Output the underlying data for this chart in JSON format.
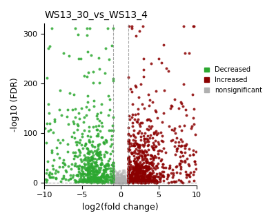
{
  "title": "WS13_30_vs_WS13_4",
  "xlabel": "log2(fold change)",
  "ylabel": "-log10 (FDR)",
  "xlim": [
    -10,
    10
  ],
  "ylim": [
    -5,
    320
  ],
  "yticks": [
    0,
    100,
    200,
    300
  ],
  "xticks": [
    -10,
    -5,
    0,
    5,
    10
  ],
  "color_decreased": "#2ca830",
  "color_increased": "#8b0000",
  "color_nonsig": "#b0b0b0",
  "vline1": -1.0,
  "vline2": 1.0,
  "hline": 0.0,
  "seed": 42,
  "n_decreased": 550,
  "n_increased": 750,
  "n_nonsig": 300,
  "legend_labels": [
    "Decreased",
    "Increased",
    "nonsignificant"
  ],
  "marker_size": 8,
  "alpha": 0.85
}
